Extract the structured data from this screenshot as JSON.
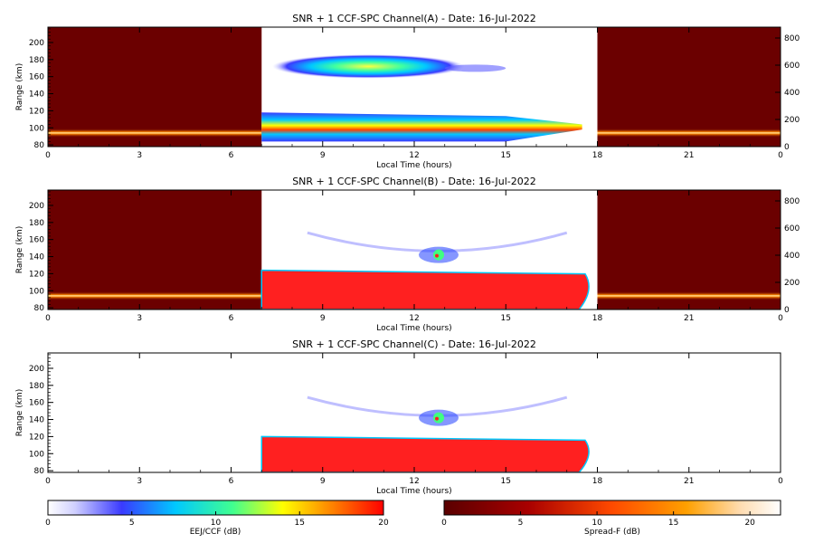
{
  "colors": {
    "frame": "#000000",
    "background": "#ffffff",
    "spreadf_dark": "#6b0000",
    "eej_red": "#ff2020"
  },
  "colormaps": {
    "eej": [
      "#ffffff",
      "#c8c8ff",
      "#4040ff",
      "#00c8ff",
      "#40ff80",
      "#ffff00",
      "#ff8000",
      "#ff0000"
    ],
    "spreadf": [
      "#5a0000",
      "#a00000",
      "#ff4000",
      "#ffa000",
      "#ffe0a0",
      "#ffffff"
    ]
  },
  "chart_data": [
    {
      "type": "heatmap",
      "title": "SNR + 1 CCF-SPC Channel(A) - Date: 16-Jul-2022",
      "xlabel": "Local Time (hours)",
      "ylabel": "Range (km)",
      "xlim": [
        0,
        24
      ],
      "ylim": [
        78,
        218
      ],
      "y2lim": [
        0,
        880
      ],
      "xticks": [
        "0",
        "3",
        "6",
        "9",
        "12",
        "15",
        "18",
        "21",
        "0"
      ],
      "yticks": [
        "80",
        "100",
        "120",
        "140",
        "160",
        "180",
        "200"
      ],
      "y2ticks": [
        "0",
        "200",
        "400",
        "600",
        "800"
      ],
      "regions": [
        {
          "kind": "spreadf_bg",
          "t0": 0,
          "t1": 7,
          "note": "dark red background"
        },
        {
          "kind": "spreadf_bg",
          "t0": 18,
          "t1": 24,
          "note": "dark red background"
        },
        {
          "kind": "spreadf_layer",
          "t0": 0,
          "t1": 7,
          "range_km": 94
        },
        {
          "kind": "spreadf_layer",
          "t0": 18,
          "t1": 24,
          "range_km": 94
        },
        {
          "kind": "eej_layer",
          "t0": 7,
          "t1": 17.5,
          "range_low": 84,
          "range_high": 118,
          "peak_dB": 20
        },
        {
          "kind": "echo_150km",
          "t0": 7.2,
          "t1": 15,
          "range_low": 160,
          "range_high": 184,
          "peak_dB": 14
        }
      ]
    },
    {
      "type": "heatmap",
      "title": "SNR + 1 CCF-SPC Channel(B) - Date: 16-Jul-2022",
      "xlabel": "Local Time (hours)",
      "ylabel": "Range (km)",
      "xlim": [
        0,
        24
      ],
      "ylim": [
        78,
        218
      ],
      "y2lim": [
        0,
        880
      ],
      "xticks": [
        "0",
        "3",
        "6",
        "9",
        "12",
        "15",
        "18",
        "21",
        "0"
      ],
      "yticks": [
        "80",
        "100",
        "120",
        "140",
        "160",
        "180",
        "200"
      ],
      "y2ticks": [
        "0",
        "200",
        "400",
        "600",
        "800"
      ],
      "regions": [
        {
          "kind": "spreadf_bg",
          "t0": 0,
          "t1": 7
        },
        {
          "kind": "spreadf_bg",
          "t0": 18,
          "t1": 24
        },
        {
          "kind": "spreadf_layer",
          "t0": 0,
          "t1": 7,
          "range_km": 94
        },
        {
          "kind": "spreadf_layer",
          "t0": 18,
          "t1": 24,
          "range_km": 94
        },
        {
          "kind": "eej_saturated",
          "t0": 7,
          "t1": 17.8,
          "range_low": 78,
          "range_high": 124,
          "peak_dB": 20
        },
        {
          "kind": "echo_150km_arc",
          "t0": 8.5,
          "t1": 17,
          "range_low": 140,
          "range_high": 168,
          "peak_dB": 16
        }
      ]
    },
    {
      "type": "heatmap",
      "title": "SNR + 1 CCF-SPC Channel(C) - Date: 16-Jul-2022",
      "xlabel": "Local Time (hours)",
      "ylabel": "Range (km)",
      "xlim": [
        0,
        24
      ],
      "ylim": [
        78,
        218
      ],
      "xticks": [
        "0",
        "3",
        "6",
        "9",
        "12",
        "15",
        "18",
        "21",
        "0"
      ],
      "yticks": [
        "80",
        "100",
        "120",
        "140",
        "160",
        "180",
        "200"
      ],
      "regions": [
        {
          "kind": "eej_saturated",
          "t0": 7,
          "t1": 17.8,
          "range_low": 78,
          "range_high": 120,
          "peak_dB": 20
        },
        {
          "kind": "echo_150km_arc",
          "t0": 8.5,
          "t1": 17,
          "range_low": 138,
          "range_high": 166,
          "peak_dB": 16
        }
      ]
    }
  ],
  "colorbars": [
    {
      "label": "EEJ/CCF (dB)",
      "range": [
        0,
        20
      ],
      "ticks": [
        "0",
        "5",
        "10",
        "15",
        "20"
      ],
      "colormap": "eej"
    },
    {
      "label": "Spread-F (dB)",
      "range": [
        0,
        22
      ],
      "ticks": [
        "0",
        "5",
        "10",
        "15",
        "20"
      ],
      "colormap": "spreadf"
    }
  ]
}
